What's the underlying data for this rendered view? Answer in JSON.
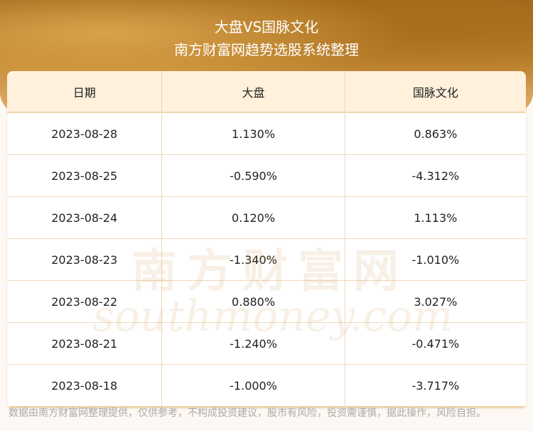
{
  "header": {
    "title": "大盘VS国脉文化",
    "subtitle": "南方财富网趋势选股系统整理"
  },
  "table": {
    "columns": [
      "日期",
      "大盘",
      "国脉文化"
    ],
    "rows": [
      [
        "2023-08-28",
        "1.130%",
        "0.863%"
      ],
      [
        "2023-08-25",
        "-0.590%",
        "-4.312%"
      ],
      [
        "2023-08-24",
        "0.120%",
        "1.113%"
      ],
      [
        "2023-08-23",
        "-1.340%",
        "-1.010%"
      ],
      [
        "2023-08-22",
        "0.880%",
        "3.027%"
      ],
      [
        "2023-08-21",
        "-1.240%",
        "-0.471%"
      ],
      [
        "2023-08-18",
        "-1.000%",
        "-3.717%"
      ]
    ]
  },
  "watermark": {
    "cn": "南方财富网",
    "en": "southmoney.com"
  },
  "footer": {
    "disclaimer": "数据由南方财富网整理提供，仅供参考，不构成投资建议，股市有风险，投资需谨慎，据此操作，风险自担。"
  },
  "colors": {
    "header_bg": "#b57a28",
    "table_head_bg": "#fff1dc",
    "border": "#efd8b8"
  }
}
